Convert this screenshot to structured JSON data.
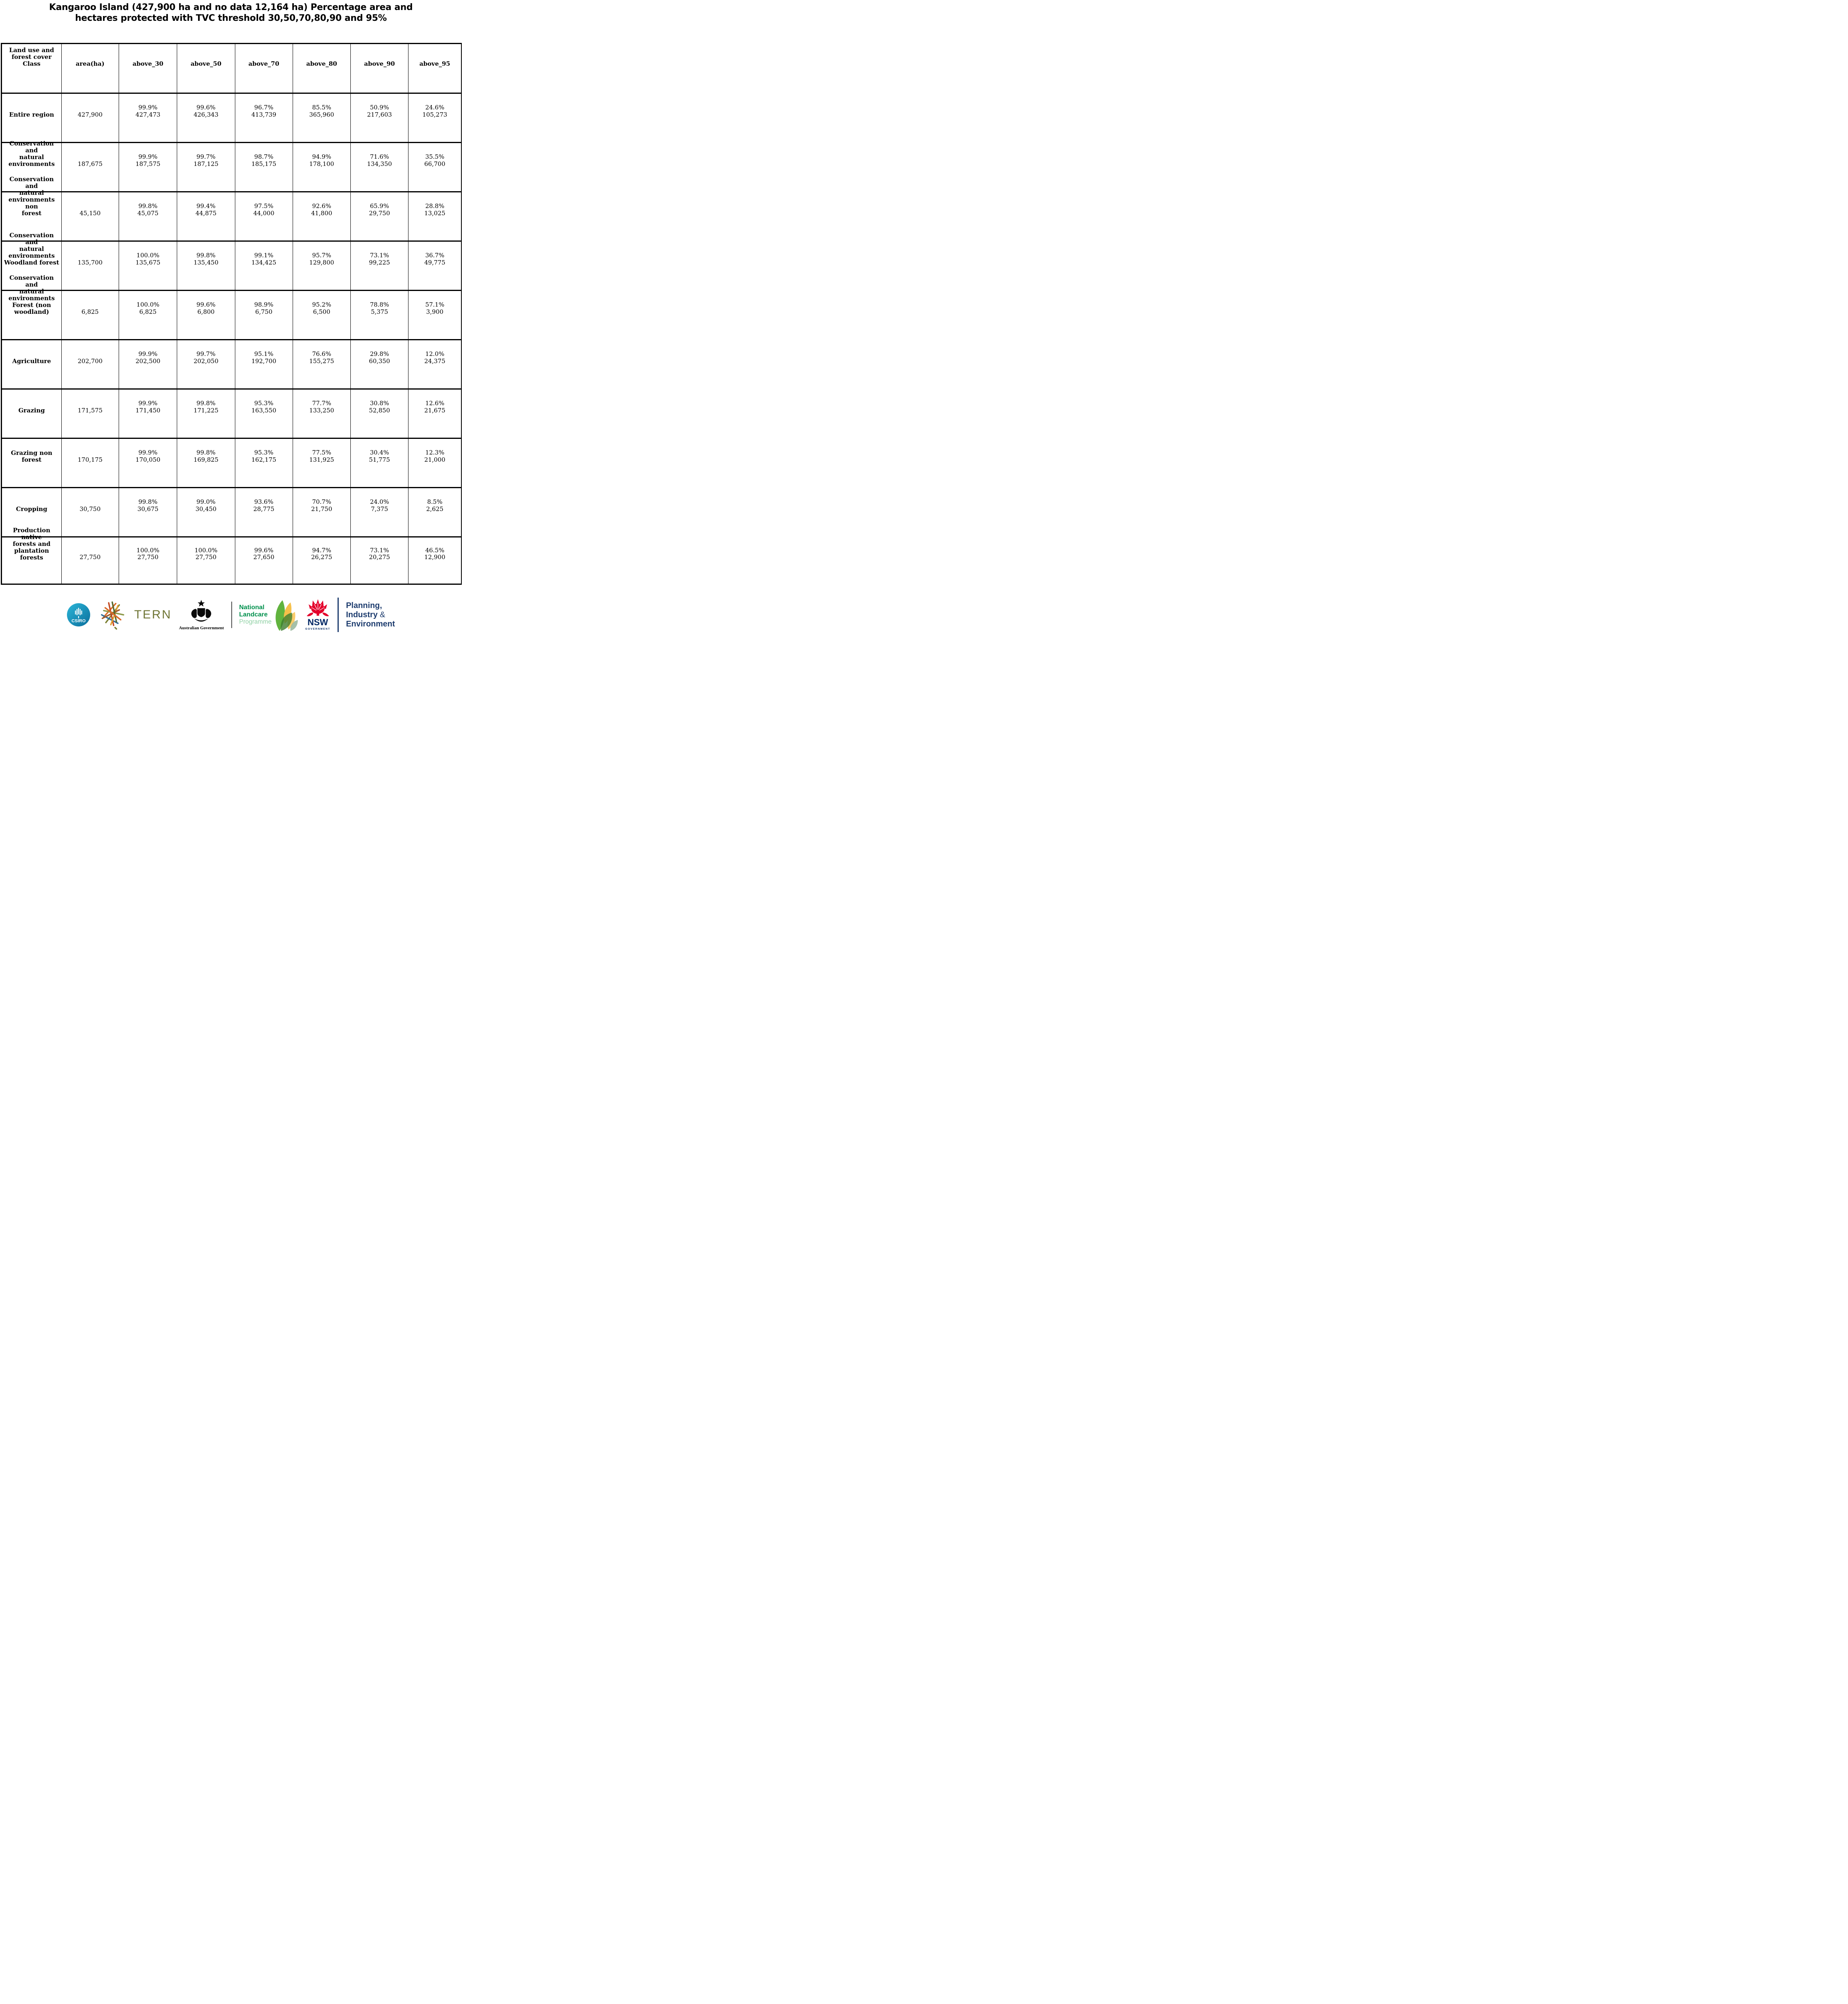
{
  "title": {
    "line1": "Kangaroo Island (427,900 ha and no data 12,164 ha) Percentage area and",
    "line2": "hectares protected with TVC threshold 30,50,70,80,90 and 95%"
  },
  "chart_data": {
    "type": "table",
    "title": "Kangaroo Island (427,900 ha and no data 12,164 ha) Percentage area and hectares protected with TVC threshold 30,50,70,80,90 and 95%",
    "columns": [
      "Land use and\nforest cover\nClass",
      "area(ha)",
      "above_30",
      "above_50",
      "above_70",
      "above_80",
      "above_90",
      "above_95"
    ],
    "rows": [
      {
        "label": "Entire region",
        "area_ha": "427,900",
        "thresholds": [
          {
            "pct": "99.9%",
            "ha": "427,473"
          },
          {
            "pct": "99.6%",
            "ha": "426,343"
          },
          {
            "pct": "96.7%",
            "ha": "413,739"
          },
          {
            "pct": "85.5%",
            "ha": "365,960"
          },
          {
            "pct": "50.9%",
            "ha": "217,603"
          },
          {
            "pct": "24.6%",
            "ha": "105,273"
          }
        ]
      },
      {
        "label": "Conservation and\nnatural\nenvironments",
        "area_ha": "187,675",
        "thresholds": [
          {
            "pct": "99.9%",
            "ha": "187,575"
          },
          {
            "pct": "99.7%",
            "ha": "187,125"
          },
          {
            "pct": "98.7%",
            "ha": "185,175"
          },
          {
            "pct": "94.9%",
            "ha": "178,100"
          },
          {
            "pct": "71.6%",
            "ha": "134,350"
          },
          {
            "pct": "35.5%",
            "ha": "66,700"
          }
        ]
      },
      {
        "label": "Conservation and\nnatural\nenvironments non\nforest",
        "area_ha": "45,150",
        "thresholds": [
          {
            "pct": "99.8%",
            "ha": "45,075"
          },
          {
            "pct": "99.4%",
            "ha": "44,875"
          },
          {
            "pct": "97.5%",
            "ha": "44,000"
          },
          {
            "pct": "92.6%",
            "ha": "41,800"
          },
          {
            "pct": "65.9%",
            "ha": "29,750"
          },
          {
            "pct": "28.8%",
            "ha": "13,025"
          }
        ]
      },
      {
        "label": "Conservation and\nnatural\nenvironments\nWoodland forest",
        "area_ha": "135,700",
        "thresholds": [
          {
            "pct": "100.0%",
            "ha": "135,675"
          },
          {
            "pct": "99.8%",
            "ha": "135,450"
          },
          {
            "pct": "99.1%",
            "ha": "134,425"
          },
          {
            "pct": "95.7%",
            "ha": "129,800"
          },
          {
            "pct": "73.1%",
            "ha": "99,225"
          },
          {
            "pct": "36.7%",
            "ha": "49,775"
          }
        ]
      },
      {
        "label": "Conservation and\nnatural\nenvironments\nForest (non\nwoodland)",
        "area_ha": "6,825",
        "thresholds": [
          {
            "pct": "100.0%",
            "ha": "6,825"
          },
          {
            "pct": "99.6%",
            "ha": "6,800"
          },
          {
            "pct": "98.9%",
            "ha": "6,750"
          },
          {
            "pct": "95.2%",
            "ha": "6,500"
          },
          {
            "pct": "78.8%",
            "ha": "5,375"
          },
          {
            "pct": "57.1%",
            "ha": "3,900"
          }
        ]
      },
      {
        "label": "Agriculture",
        "area_ha": "202,700",
        "thresholds": [
          {
            "pct": "99.9%",
            "ha": "202,500"
          },
          {
            "pct": "99.7%",
            "ha": "202,050"
          },
          {
            "pct": "95.1%",
            "ha": "192,700"
          },
          {
            "pct": "76.6%",
            "ha": "155,275"
          },
          {
            "pct": "29.8%",
            "ha": "60,350"
          },
          {
            "pct": "12.0%",
            "ha": "24,375"
          }
        ]
      },
      {
        "label": "Grazing",
        "area_ha": "171,575",
        "thresholds": [
          {
            "pct": "99.9%",
            "ha": "171,450"
          },
          {
            "pct": "99.8%",
            "ha": "171,225"
          },
          {
            "pct": "95.3%",
            "ha": "163,550"
          },
          {
            "pct": "77.7%",
            "ha": "133,250"
          },
          {
            "pct": "30.8%",
            "ha": "52,850"
          },
          {
            "pct": "12.6%",
            "ha": "21,675"
          }
        ]
      },
      {
        "label": "Grazing non\nforest",
        "area_ha": "170,175",
        "thresholds": [
          {
            "pct": "99.9%",
            "ha": "170,050"
          },
          {
            "pct": "99.8%",
            "ha": "169,825"
          },
          {
            "pct": "95.3%",
            "ha": "162,175"
          },
          {
            "pct": "77.5%",
            "ha": "131,925"
          },
          {
            "pct": "30.4%",
            "ha": "51,775"
          },
          {
            "pct": "12.3%",
            "ha": "21,000"
          }
        ]
      },
      {
        "label": "Cropping",
        "area_ha": "30,750",
        "thresholds": [
          {
            "pct": "99.8%",
            "ha": "30,675"
          },
          {
            "pct": "99.0%",
            "ha": "30,450"
          },
          {
            "pct": "93.6%",
            "ha": "28,775"
          },
          {
            "pct": "70.7%",
            "ha": "21,750"
          },
          {
            "pct": "24.0%",
            "ha": "7,375"
          },
          {
            "pct": "8.5%",
            "ha": "2,625"
          }
        ]
      },
      {
        "label": "Production native\nforests and\nplantation\nforests",
        "area_ha": "27,750",
        "thresholds": [
          {
            "pct": "100.0%",
            "ha": "27,750"
          },
          {
            "pct": "100.0%",
            "ha": "27,750"
          },
          {
            "pct": "99.6%",
            "ha": "27,650"
          },
          {
            "pct": "94.7%",
            "ha": "26,275"
          },
          {
            "pct": "73.1%",
            "ha": "20,275"
          },
          {
            "pct": "46.5%",
            "ha": "12,900"
          }
        ]
      }
    ]
  },
  "footer": {
    "csiro": {
      "label": "CSIRO"
    },
    "tern": {
      "label": "TERN"
    },
    "aus_gov": {
      "caption": "Australian Government"
    },
    "landcare": {
      "line1": "National",
      "line2": "Landcare",
      "line3": "Programme"
    },
    "nsw": {
      "label": "NSW",
      "sub": "GOVERNMENT"
    },
    "pie": {
      "line1": "Planning,",
      "line2_word": "Industry",
      "line2_amp": " &",
      "line3": "Environment"
    },
    "colors": {
      "csiro_teal_light": "#2bb6d8",
      "csiro_teal_dark": "#0b6e9c",
      "tern_olive": "#6e7434",
      "landcare_green": "#00904d",
      "landcare_light_green": "#8fd0a4",
      "leaf_green": "#61b33e",
      "leaf_yellow": "#f6c04a",
      "leaf_dark": "#3f7d2e",
      "leaf_sage": "#9bb9a0",
      "nsw_red": "#e4002b",
      "nsw_navy": "#002664",
      "pie_navy": "#1d3c6e"
    }
  }
}
